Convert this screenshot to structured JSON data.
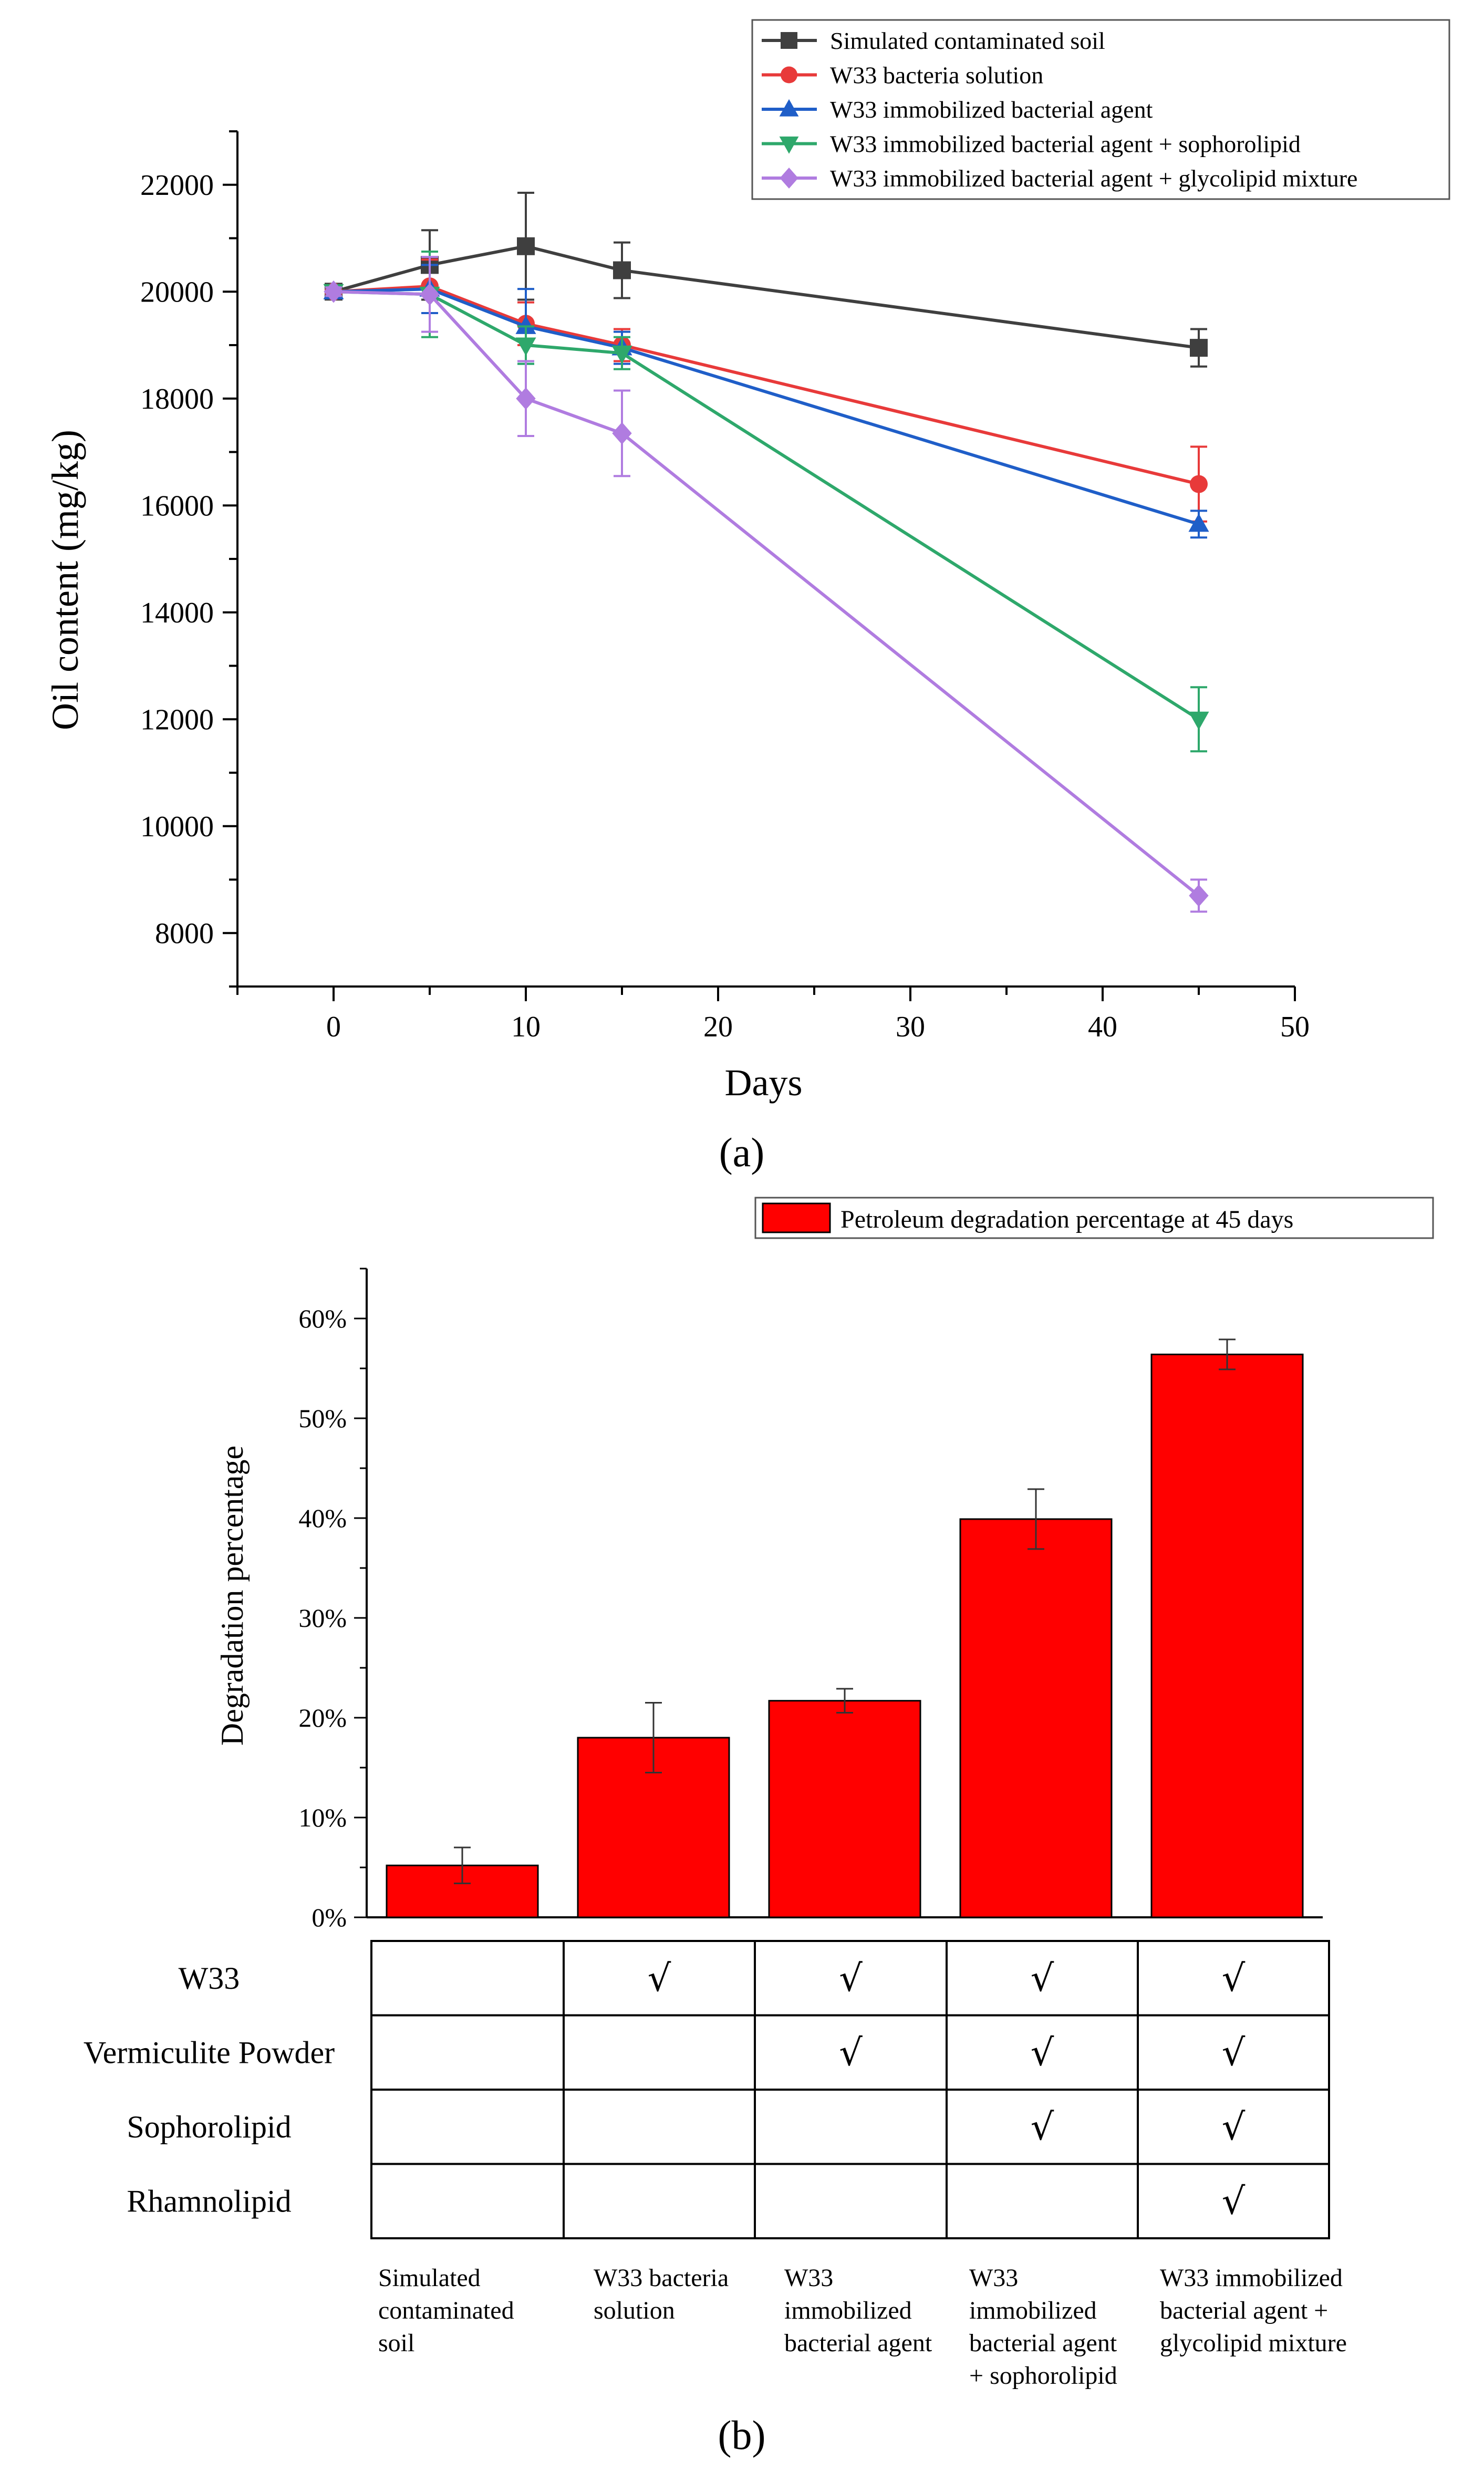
{
  "panel_a_label": "(a)",
  "panel_b_label": "(b)",
  "chart_data": [
    {
      "type": "line",
      "xlabel": "Days",
      "ylabel": "Oil content (mg/kg)",
      "xlim": [
        -5,
        50
      ],
      "ylim": [
        7000,
        23000
      ],
      "xticks": [
        0,
        10,
        20,
        30,
        40,
        50
      ],
      "yticks": [
        8000,
        10000,
        12000,
        14000,
        16000,
        18000,
        20000,
        22000
      ],
      "legend_position": "top-right",
      "grid": false,
      "series": [
        {
          "name": "Simulated contaminated soil",
          "color": "#3f3f3f",
          "marker": "square",
          "x": [
            0,
            5,
            10,
            15,
            45
          ],
          "y": [
            20000,
            20500,
            20850,
            20400,
            18950
          ],
          "err": [
            80,
            650,
            1000,
            520,
            350
          ]
        },
        {
          "name": "W33 bacteria solution",
          "color": "#e83a3a",
          "marker": "circle",
          "x": [
            0,
            5,
            10,
            15,
            45
          ],
          "y": [
            20000,
            20100,
            19400,
            19000,
            16400
          ],
          "err": [
            80,
            500,
            400,
            300,
            700
          ]
        },
        {
          "name": "W33 immobilized bacterial agent",
          "color": "#1f5ec8",
          "marker": "triangle-up",
          "x": [
            0,
            5,
            10,
            15,
            45
          ],
          "y": [
            20000,
            20050,
            19350,
            18950,
            15650
          ],
          "err": [
            80,
            450,
            700,
            300,
            250
          ]
        },
        {
          "name": "W33 immobilized bacterial agent + sophorolipid",
          "color": "#2ea86b",
          "marker": "triangle-down",
          "x": [
            0,
            5,
            10,
            15,
            45
          ],
          "y": [
            20000,
            19950,
            19000,
            18850,
            12000
          ],
          "err": [
            80,
            800,
            350,
            300,
            600
          ]
        },
        {
          "name": "W33 immobilized bacterial agent + glycolipid mixture",
          "color": "#b07ce0",
          "marker": "diamond",
          "x": [
            0,
            5,
            10,
            15,
            45
          ],
          "y": [
            20000,
            19950,
            18000,
            17350,
            8700
          ],
          "err": [
            80,
            700,
            700,
            800,
            300
          ]
        }
      ]
    },
    {
      "type": "bar",
      "ylabel": "Degradation percentage",
      "ylim": [
        0,
        65
      ],
      "yticks": [
        0,
        10,
        20,
        30,
        40,
        50,
        60
      ],
      "ytick_suffix": "%",
      "legend_position": "top-right",
      "bar_color": "#ff0000",
      "series": [
        {
          "name": "Petroleum degradation percentage at 45 days",
          "values": [
            5.2,
            18.0,
            21.7,
            39.9,
            56.4
          ],
          "err": [
            1.8,
            3.5,
            1.2,
            3.0,
            1.5
          ]
        }
      ],
      "categories": [
        [
          "Simulated",
          "contaminated",
          "soil"
        ],
        [
          "W33 bacteria",
          "solution"
        ],
        [
          "W33",
          "immobilized",
          "bacterial agent"
        ],
        [
          "W33",
          "immobilized",
          "bacterial agent",
          "+ sophorolipid"
        ],
        [
          "W33 immobilized",
          "bacterial agent +",
          "glycolipid mixture"
        ]
      ],
      "table": {
        "check_symbol": "√",
        "rows": [
          {
            "label": "W33",
            "checks": [
              false,
              true,
              true,
              true,
              true
            ]
          },
          {
            "label": "Vermiculite Powder",
            "checks": [
              false,
              false,
              true,
              true,
              true
            ]
          },
          {
            "label": "Sophorolipid",
            "checks": [
              false,
              false,
              false,
              true,
              true
            ]
          },
          {
            "label": "Rhamnolipid",
            "checks": [
              false,
              false,
              false,
              false,
              true
            ]
          }
        ]
      }
    }
  ]
}
